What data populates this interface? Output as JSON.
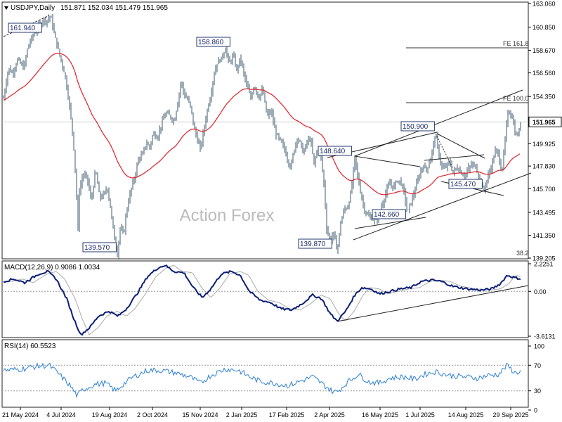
{
  "header": {
    "symbol_label": "USDJPY,Daily",
    "ohlc": "151.871 152.034 151.479 151.965",
    "dropdown_icon": "triangle-down-icon"
  },
  "watermark": "Action Forex",
  "chart_data": {
    "type": "candlestick",
    "symbol": "USDJPY",
    "timeframe": "Daily",
    "price_axis": {
      "ticks": [
        "163.060",
        "160.850",
        "158.670",
        "156.560",
        "154.350",
        "151.965",
        "149.925",
        "147.830",
        "145.700",
        "143.495",
        "141.350",
        "139.205"
      ],
      "ylim": [
        139.205,
        163.06
      ],
      "current_price": "151.965"
    },
    "date_axis": [
      "21 May 2024",
      "4 Jul 2024",
      "19 Aug 2024",
      "2 Oct 2024",
      "15 Nov 2024",
      "2 Jan 2025",
      "17 Feb 2025",
      "2 Apr 2025",
      "16 May 2025",
      "1 Jul 2025",
      "14 Aug 2025",
      "29 Sep 2025"
    ],
    "price_labels": [
      "161.940",
      "158.860",
      "139.570",
      "139.870",
      "148.640",
      "150.900",
      "142.660",
      "145.470"
    ],
    "fib_labels": [
      "FE 161.8",
      "FE 100.0",
      "38.2"
    ],
    "series": [
      {
        "name": "EMA55",
        "color": "#e0202a"
      }
    ],
    "macd": {
      "label": "MACD(12,26,9) 0.9086 1.0034",
      "ticks": [
        "2.2251",
        "0.00",
        "-3.6131"
      ]
    },
    "rsi": {
      "label": "RSI(14) 60.5523",
      "ticks": [
        "100",
        "70",
        "30",
        "0"
      ]
    },
    "colors": {
      "candle": "#3b5a6e",
      "macd": "#0a1e78",
      "signal": "#aaaaaa",
      "rsi": "#2a7fd4",
      "ma": "#e0202a"
    }
  }
}
